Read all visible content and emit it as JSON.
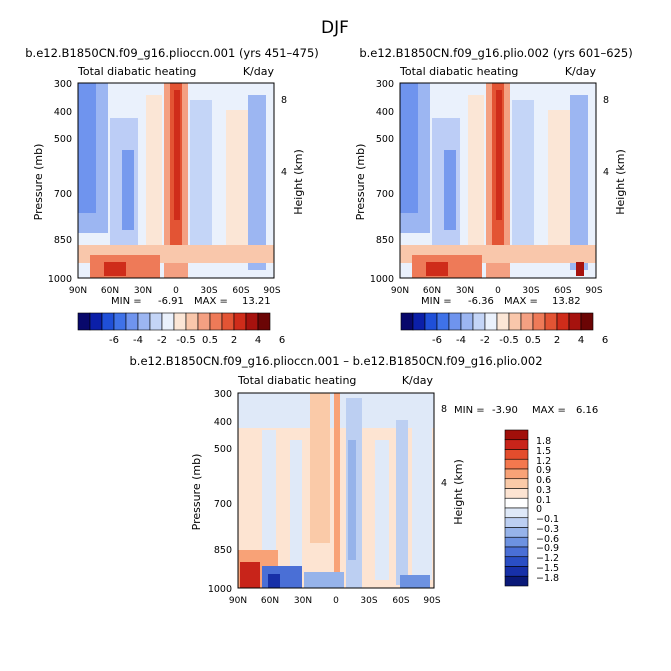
{
  "figure": {
    "title": "DJF"
  },
  "chart_data": [
    {
      "type": "heatmap",
      "title": "b.e12.B1850CN.f09_g16.plioccn.001 (yrs 451–475)",
      "variable": "Total diabatic heating",
      "units": "K/day",
      "ylabel": "Pressure (mb)",
      "ylabel_right": "Height (km)",
      "x_ticks": [
        "90N",
        "60N",
        "30N",
        "0",
        "30S",
        "60S",
        "90S"
      ],
      "y_ticks": [
        "300",
        "400",
        "500",
        "700",
        "850",
        "1000"
      ],
      "height_ticks": [
        "8",
        "4"
      ],
      "min_label": "MIN =",
      "min": "-6.91",
      "max_label": "MAX =",
      "max": "13.21",
      "colorbar_labels": [
        "-6",
        "-4",
        "-2",
        "-0.5",
        "0.5",
        "2",
        "4",
        "6"
      ]
    },
    {
      "type": "heatmap",
      "title": "b.e12.B1850CN.f09_g16.plio.002 (yrs 601–625)",
      "variable": "Total diabatic heating",
      "units": "K/day",
      "ylabel": "Pressure (mb)",
      "ylabel_right": "Height (km)",
      "x_ticks": [
        "90N",
        "60N",
        "30N",
        "0",
        "30S",
        "60S",
        "90S"
      ],
      "y_ticks": [
        "300",
        "400",
        "500",
        "700",
        "850",
        "1000"
      ],
      "height_ticks": [
        "8",
        "4"
      ],
      "min_label": "MIN =",
      "min": "-6.36",
      "max_label": "MAX =",
      "max": "13.82",
      "colorbar_labels": [
        "-6",
        "-4",
        "-2",
        "-0.5",
        "0.5",
        "2",
        "4",
        "6"
      ]
    },
    {
      "type": "heatmap",
      "title": "b.e12.B1850CN.f09_g16.plioccn.001 – b.e12.B1850CN.f09_g16.plio.002",
      "variable": "Total diabatic heating",
      "units": "K/day",
      "ylabel": "Pressure (mb)",
      "ylabel_right": "Height (km)",
      "x_ticks": [
        "90N",
        "60N",
        "30N",
        "0",
        "30S",
        "60S",
        "90S"
      ],
      "y_ticks": [
        "300",
        "400",
        "500",
        "700",
        "850",
        "1000"
      ],
      "height_ticks": [
        "8",
        "4"
      ],
      "min_label": "MIN =",
      "min": "-3.90",
      "max_label": "MAX =",
      "max": "6.16",
      "colorbar_labels": [
        "1.8",
        "1.5",
        "1.2",
        "0.9",
        "0.6",
        "0.3",
        "0.1",
        "0",
        "−0.1",
        "−0.3",
        "−0.6",
        "−0.9",
        "−1.2",
        "−1.5",
        "−1.8"
      ]
    }
  ],
  "colors": {
    "abs_scale": [
      "#08086b",
      "#0b1fa8",
      "#1f4fd8",
      "#3f72e8",
      "#6f94ee",
      "#9cb6f2",
      "#c4d5f7",
      "#eaf1fc",
      "#fbe6d6",
      "#f9c7ab",
      "#f4a082",
      "#ee7a58",
      "#e35434",
      "#cf2c1a",
      "#a6120e",
      "#6b0505"
    ],
    "diff_scale_top_to_bottom": [
      "#a10f0a",
      "#c8241a",
      "#e34d2d",
      "#f4784e",
      "#f8a277",
      "#facaa8",
      "#fde4d2",
      "#ffffff",
      "#dfe9f8",
      "#bccff2",
      "#96b3ea",
      "#6d92e1",
      "#4a6fd6",
      "#2a4ec4",
      "#1730a8",
      "#0a1978"
    ]
  }
}
